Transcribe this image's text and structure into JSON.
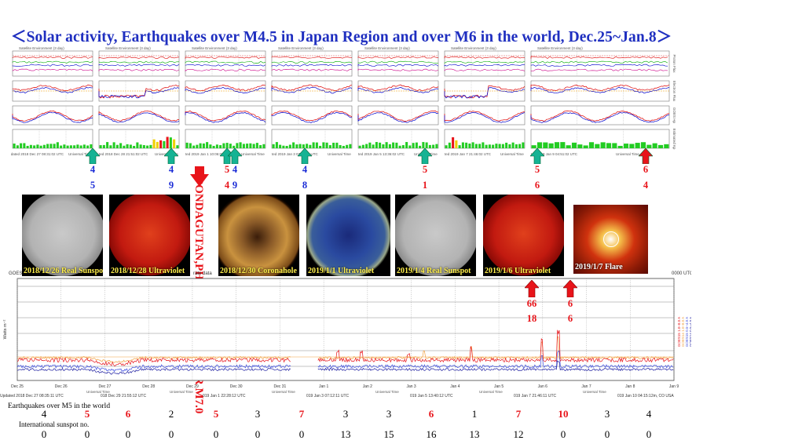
{
  "title": "＜Solar activity, Earthquakes over M4.5 in Japan Region and over M6 in the world, Dec.25~Jan.8＞",
  "top_chart": {
    "panel_titles": [
      "Satellite Environment (3 day)",
      "Satellite Environment (3 day)",
      "Satellite Environment (3 day)",
      "Satellite Environment (3 day)",
      "Satellite Environment (3 day)",
      "Satellite Environment (3 day)",
      "Satellite Environment (3 day)"
    ],
    "right_labels": [
      "Proton Flux",
      "Electron Flux",
      "GOES Hp",
      "Estimated Kp"
    ],
    "updated_labels": [
      "Updated 2018 Dec 27 08:31:02 UTC",
      "ted 2018 Dec 28 21:51:02 UTC",
      "ted 2019 Jan 1 10:06:02 UTC",
      "ted 2019 Jan 3 07:11:03 UTC",
      "ted 2019 Jan 5 13:36:02 UTC",
      "ted 2019 Jan 7 21:46:02 UTC",
      "ted 2019 Jan 9 04:51:02 UTC"
    ],
    "axis_label": "Universal Time"
  },
  "green_arrows": [
    {
      "top": "4",
      "bottom": "5",
      "color": "green"
    },
    {
      "top": "4",
      "bottom": "9",
      "color": "green"
    },
    {
      "top": "5",
      "bottom": "4",
      "color": "green"
    },
    {
      "top": "4",
      "bottom": "9",
      "color": "green"
    },
    {
      "top": "4",
      "bottom": "8",
      "color": "green"
    },
    {
      "top": "5",
      "bottom": "1",
      "color": "green"
    },
    {
      "top": "5",
      "bottom": "6",
      "color": "green"
    },
    {
      "top": "6",
      "bottom": "4",
      "color": "red"
    }
  ],
  "occur_text": "PONDAGUTAN,PHILIPPINES OCCUR M7.0",
  "photos": [
    {
      "caption": "2018/12/26 Real Sunspot",
      "kind": "gray"
    },
    {
      "caption": "2018/12/28 Ultraviolet",
      "kind": "red"
    },
    {
      "caption": "2018/12/30 Coronahole",
      "kind": "orange"
    },
    {
      "caption": "2019/1/1 Ultraviolet",
      "kind": "blue"
    },
    {
      "caption": "2019/1/4 Real Sunspot",
      "kind": "gray"
    },
    {
      "caption": "2019/1/6 Ultraviolet",
      "kind": "red"
    },
    {
      "caption": "2019/1/7 Flare",
      "kind": "flare"
    }
  ],
  "flare_arrows": [
    {
      "top": "66",
      "bottom": "18"
    },
    {
      "top": "6",
      "bottom": "6"
    }
  ],
  "bottom_chart": {
    "goes_label": "GOES",
    "partial_label": "rate data",
    "utc_label": "0000 UTC",
    "y_label": "Watts m⁻²",
    "legend_right": [
      "GOES15 1.0–8.0 A",
      "GOES14 1.0–8.0 A",
      "GOES15 0.5–4.0 A",
      "GOES14 0.5–4.0 A"
    ],
    "dates": [
      "Dec 25",
      "Dec 26",
      "Dec 27",
      "Dec 28",
      "Dec 29",
      "Dec 30",
      "Dec 31",
      "Jan 1",
      "Jan 2",
      "Jan 3",
      "Jan 4",
      "Jan 5",
      "Jan 6",
      "Jan 7",
      "Jan 8",
      "Jan 9"
    ],
    "updated_labels": [
      "Updated 2018 Dec 27 08:35:11 UTC",
      "018 Dec 29 21:55:12 UTC",
      "019 Jan 1 22:28:12 UTC",
      "019 Jan 3 07:12:11 UTC",
      "019 Jan 5 13:40:12 UTC",
      "019 Jan 7 21:46:11 UTC",
      "019 Jan 10 04:15:12m, CO USA"
    ],
    "axis_label": "Universal Time"
  },
  "earthquake_label": "Earthquakes over M5 in the world",
  "sunspot_label": "International sunspot no.",
  "earthquakes": [
    {
      "value": "4",
      "color": "black"
    },
    {
      "value": "5",
      "color": "red"
    },
    {
      "value": "6",
      "color": "red"
    },
    {
      "value": "2",
      "color": "black"
    },
    {
      "value": "5",
      "color": "red"
    },
    {
      "value": "3",
      "color": "black"
    },
    {
      "value": "7",
      "color": "red"
    },
    {
      "value": "3",
      "color": "black"
    },
    {
      "value": "3",
      "color": "black"
    },
    {
      "value": "6",
      "color": "red"
    },
    {
      "value": "1",
      "color": "black"
    },
    {
      "value": "7",
      "color": "red"
    },
    {
      "value": "10",
      "color": "red"
    },
    {
      "value": "3",
      "color": "black"
    },
    {
      "value": "4",
      "color": "black"
    }
  ],
  "sunspots": [
    "0",
    "0",
    "0",
    "0",
    "0",
    "0",
    "0",
    "13",
    "15",
    "16",
    "13",
    "12",
    "0",
    "0",
    "0"
  ],
  "colors": {
    "title": "#1f2fc0",
    "green": "#16b394",
    "red": "#e8141a",
    "blue_digit": "#1a2bd6",
    "red_digit": "#e8141a"
  }
}
